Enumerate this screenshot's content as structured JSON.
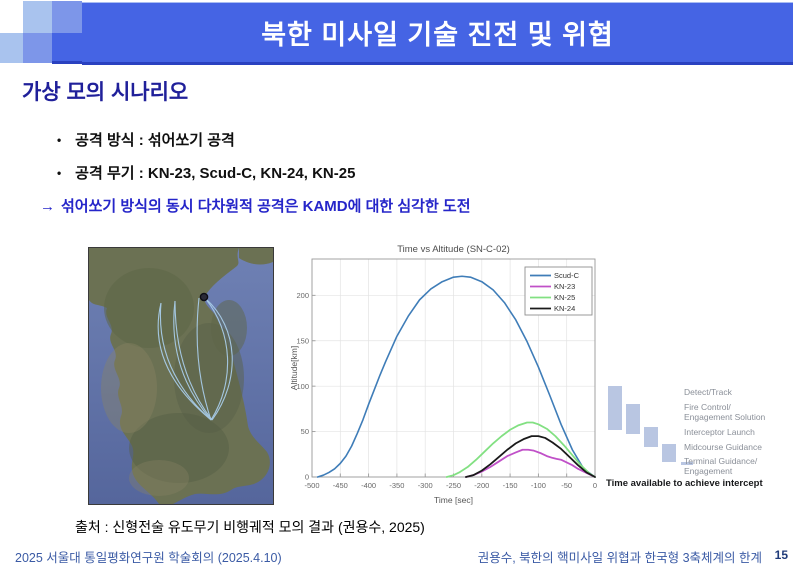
{
  "slide": {
    "title": "북한 미사일 기술 진전 및 위협",
    "section_heading": "가상 모의 시나리오",
    "bullet_marker": "•",
    "bullets": [
      "공격 방식 : 섞어쏘기 공격",
      "공격 무기 : KN-23, Scud-C, KN-24, KN-25"
    ],
    "conclusion_arrow": "→",
    "conclusion": "섞어쏘기 방식의 동시 다차원적 공격은 KAMD에 대한 심각한 도전",
    "source": "출처 : 신형전술 유도무기 비행궤적 모의 결과 (권용수, 2025)",
    "footer_left": "2025 서울대 통일평화연구원 학술회의 (2025.4.10)",
    "footer_right": "권용수, 북한의 핵미사일 위협과 한국형 3축체계의 한계",
    "page_number": "15"
  },
  "colors": {
    "banner_blue": "#4564e4",
    "square_light": "#a9c3ee",
    "square_medium": "#7d96e9",
    "heading_navy": "#20209a",
    "conclusion_blue": "#2525c9",
    "footer_blue": "#3b5ba5",
    "timeline_bar": "#b9c6e2"
  },
  "chart_data": {
    "type": "line",
    "title": "Time vs Altitude (SN-C-02)",
    "xlabel": "Time [sec]",
    "ylabel": "Altitude[km]",
    "xlim": [
      -500,
      0
    ],
    "ylim": [
      0,
      240
    ],
    "xticks": [
      -500,
      -450,
      -400,
      -350,
      -300,
      -250,
      -200,
      -150,
      -100,
      -50,
      0
    ],
    "yticks": [
      0,
      50,
      100,
      150,
      200
    ],
    "grid": true,
    "legend_position": "top-right",
    "series": [
      {
        "name": "Scud-C",
        "color": "#3f7db8",
        "points": [
          [
            -490,
            0
          ],
          [
            -480,
            2
          ],
          [
            -470,
            5
          ],
          [
            -460,
            9
          ],
          [
            -450,
            15
          ],
          [
            -440,
            23
          ],
          [
            -430,
            34
          ],
          [
            -420,
            48
          ],
          [
            -410,
            63
          ],
          [
            -400,
            80
          ],
          [
            -390,
            96
          ],
          [
            -380,
            112
          ],
          [
            -370,
            127
          ],
          [
            -350,
            155
          ],
          [
            -330,
            177
          ],
          [
            -310,
            195
          ],
          [
            -290,
            207
          ],
          [
            -270,
            215
          ],
          [
            -250,
            220
          ],
          [
            -235,
            221
          ],
          [
            -220,
            220
          ],
          [
            -200,
            215
          ],
          [
            -180,
            206
          ],
          [
            -160,
            192
          ],
          [
            -140,
            173
          ],
          [
            -120,
            149
          ],
          [
            -100,
            121
          ],
          [
            -80,
            90
          ],
          [
            -60,
            58
          ],
          [
            -40,
            30
          ],
          [
            -20,
            9
          ],
          [
            0,
            0
          ]
        ]
      },
      {
        "name": "KN-23",
        "color": "#c050c8",
        "points": [
          [
            -228,
            0
          ],
          [
            -215,
            2
          ],
          [
            -200,
            6
          ],
          [
            -185,
            11
          ],
          [
            -170,
            17
          ],
          [
            -155,
            23
          ],
          [
            -140,
            27
          ],
          [
            -128,
            30
          ],
          [
            -118,
            30
          ],
          [
            -108,
            29
          ],
          [
            -95,
            26
          ],
          [
            -85,
            23
          ],
          [
            -75,
            21
          ],
          [
            -68,
            20
          ],
          [
            -60,
            19
          ],
          [
            -50,
            16
          ],
          [
            -40,
            13
          ],
          [
            -30,
            9
          ],
          [
            -20,
            6
          ],
          [
            -10,
            3
          ],
          [
            0,
            0
          ]
        ]
      },
      {
        "name": "KN-25",
        "color": "#82e082",
        "points": [
          [
            -262,
            0
          ],
          [
            -250,
            2
          ],
          [
            -240,
            5
          ],
          [
            -225,
            11
          ],
          [
            -210,
            19
          ],
          [
            -195,
            28
          ],
          [
            -180,
            37
          ],
          [
            -165,
            45
          ],
          [
            -150,
            52
          ],
          [
            -135,
            57
          ],
          [
            -120,
            60
          ],
          [
            -110,
            60
          ],
          [
            -100,
            58
          ],
          [
            -85,
            53
          ],
          [
            -70,
            45
          ],
          [
            -55,
            35
          ],
          [
            -40,
            24
          ],
          [
            -25,
            13
          ],
          [
            -10,
            4
          ],
          [
            0,
            0
          ]
        ]
      },
      {
        "name": "KN-24",
        "color": "#1a1a1a",
        "points": [
          [
            -228,
            0
          ],
          [
            -215,
            2
          ],
          [
            -200,
            7
          ],
          [
            -185,
            14
          ],
          [
            -170,
            22
          ],
          [
            -155,
            30
          ],
          [
            -140,
            37
          ],
          [
            -125,
            42
          ],
          [
            -112,
            45
          ],
          [
            -100,
            45
          ],
          [
            -88,
            43
          ],
          [
            -75,
            38
          ],
          [
            -60,
            31
          ],
          [
            -45,
            22
          ],
          [
            -30,
            13
          ],
          [
            -15,
            5
          ],
          [
            0,
            0
          ]
        ]
      }
    ]
  },
  "intercept_timeline": {
    "phases": [
      "Detect/Track",
      "Fire Control/\nEngagement Solution",
      "Interceptor Launch",
      "Midcourse Guidance",
      "Terminal Guidance/\nEngagement"
    ],
    "caption": "Time available to achieve intercept"
  }
}
